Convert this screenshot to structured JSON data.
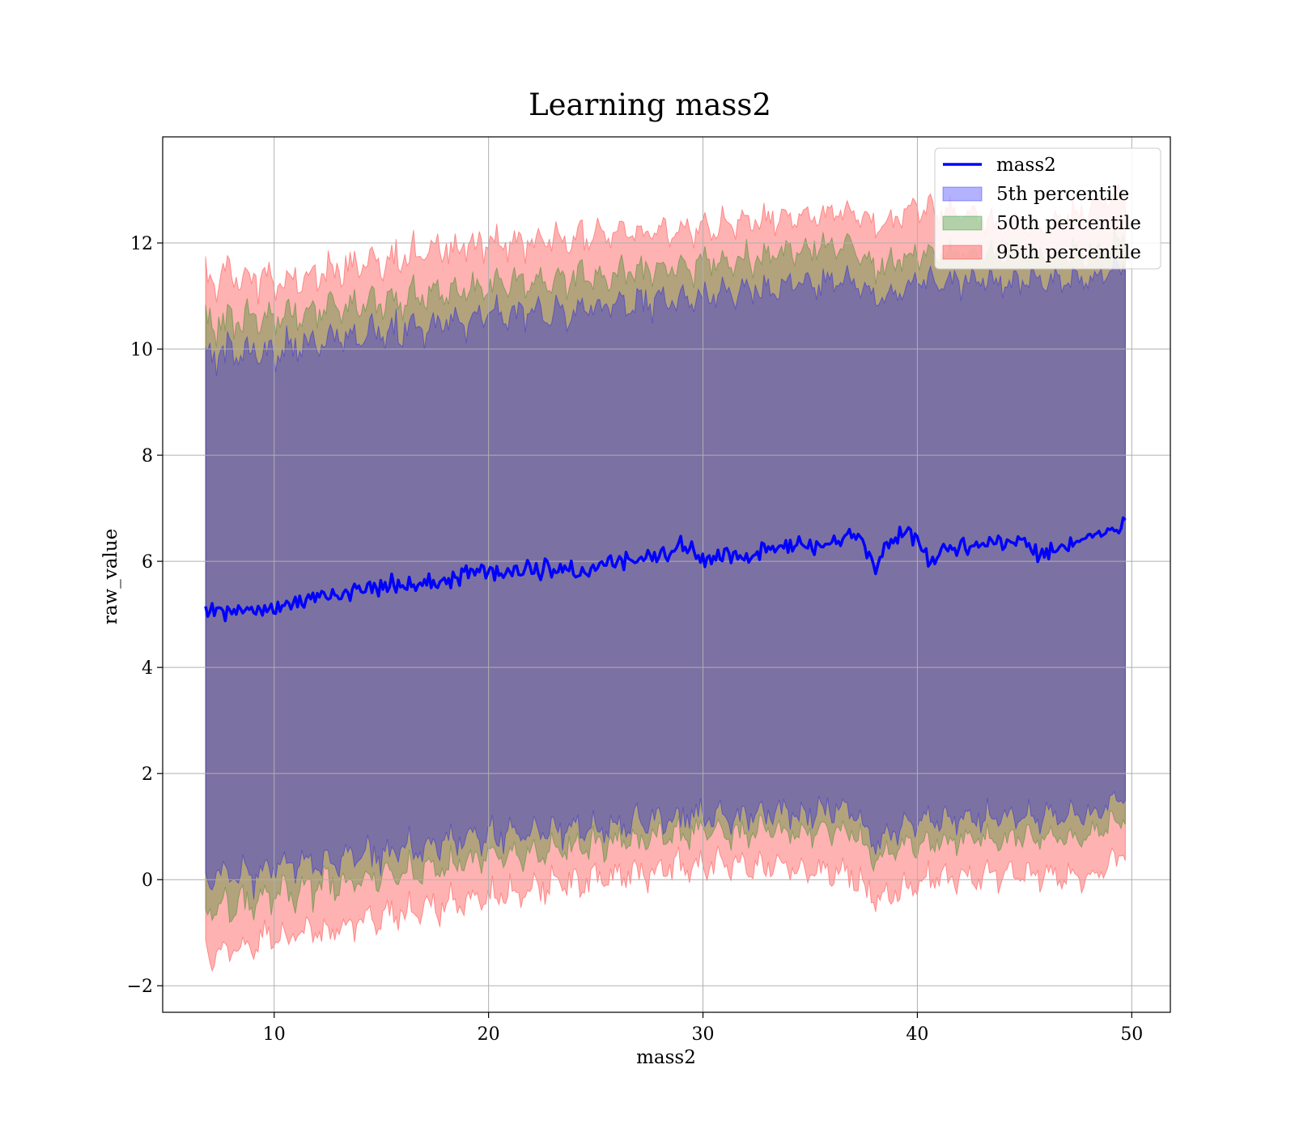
{
  "colors": {
    "line": "#0000ff",
    "band_5th": "#0000ff",
    "band_50th": "#008000",
    "band_95th": "#ff0000",
    "grid": "#b0b0b0"
  },
  "chart_data": {
    "type": "line",
    "title": "Learning mass2",
    "xlabel": "mass2",
    "ylabel": "raw_value",
    "xlim": [
      4.8,
      51.8
    ],
    "ylim": [
      -2.5,
      14.0
    ],
    "xticks": [
      10,
      20,
      30,
      40,
      50
    ],
    "yticks": [
      -2,
      0,
      2,
      4,
      6,
      8,
      10,
      12
    ],
    "grid": true,
    "legend_position": "top-right",
    "legend": [
      {
        "label": "mass2",
        "kind": "line",
        "color": "#0000ff"
      },
      {
        "label": "5th percentile",
        "kind": "patch",
        "color": "#0000ff"
      },
      {
        "label": "50th percentile",
        "kind": "patch",
        "color": "#008000"
      },
      {
        "label": "95th percentile",
        "kind": "patch",
        "color": "#ff0000"
      }
    ],
    "x_range": [
      6.8,
      49.7
    ],
    "line": {
      "name": "mass2",
      "x": [
        6.8,
        8,
        10,
        12,
        14,
        16,
        18,
        19,
        20,
        22,
        24,
        25,
        26,
        28,
        29,
        30,
        32,
        34,
        36,
        37,
        37.5,
        38,
        38.5,
        39,
        39.5,
        40,
        40.5,
        42,
        44,
        45,
        45.5,
        46,
        48,
        49,
        49.7
      ],
      "y": [
        5.1,
        5.0,
        5.1,
        5.35,
        5.45,
        5.6,
        5.6,
        5.8,
        5.8,
        5.85,
        5.85,
        5.85,
        6.0,
        6.1,
        6.3,
        6.05,
        6.1,
        6.3,
        6.25,
        6.6,
        6.3,
        5.8,
        6.3,
        6.4,
        6.65,
        6.4,
        6.0,
        6.3,
        6.35,
        6.4,
        6.1,
        6.2,
        6.4,
        6.5,
        6.8
      ]
    },
    "bands": [
      {
        "name": "95th percentile",
        "color": "#ff0000",
        "x": [
          6.8,
          10,
          20,
          30,
          37,
          38,
          40,
          45,
          48,
          49.7
        ],
        "lower": [
          -1.4,
          -1.1,
          -0.3,
          0.3,
          0.1,
          -0.4,
          0.0,
          0.1,
          0.0,
          0.5
        ],
        "upper": [
          11.4,
          11.3,
          12.0,
          12.3,
          12.6,
          12.3,
          12.7,
          12.3,
          12.6,
          13.0
        ]
      },
      {
        "name": "50th percentile",
        "color": "#008000",
        "x": [
          6.8,
          10,
          20,
          30,
          37,
          38,
          40,
          45,
          48,
          49.7
        ],
        "lower": [
          -0.6,
          -0.3,
          0.4,
          0.9,
          0.9,
          0.4,
          0.7,
          0.8,
          0.8,
          1.2
        ],
        "upper": [
          10.5,
          10.6,
          11.2,
          11.6,
          12.0,
          11.5,
          11.8,
          11.8,
          11.8,
          12.1
        ]
      },
      {
        "name": "5th percentile",
        "color": "#0000ff",
        "x": [
          6.8,
          10,
          20,
          30,
          37,
          38,
          40,
          45,
          48,
          49.7
        ],
        "lower": [
          0.0,
          0.2,
          0.8,
          1.2,
          1.3,
          0.7,
          1.1,
          1.2,
          1.2,
          1.6
        ],
        "upper": [
          9.9,
          10.0,
          10.6,
          11.0,
          11.3,
          10.9,
          11.3,
          11.3,
          11.3,
          11.6
        ]
      }
    ]
  }
}
